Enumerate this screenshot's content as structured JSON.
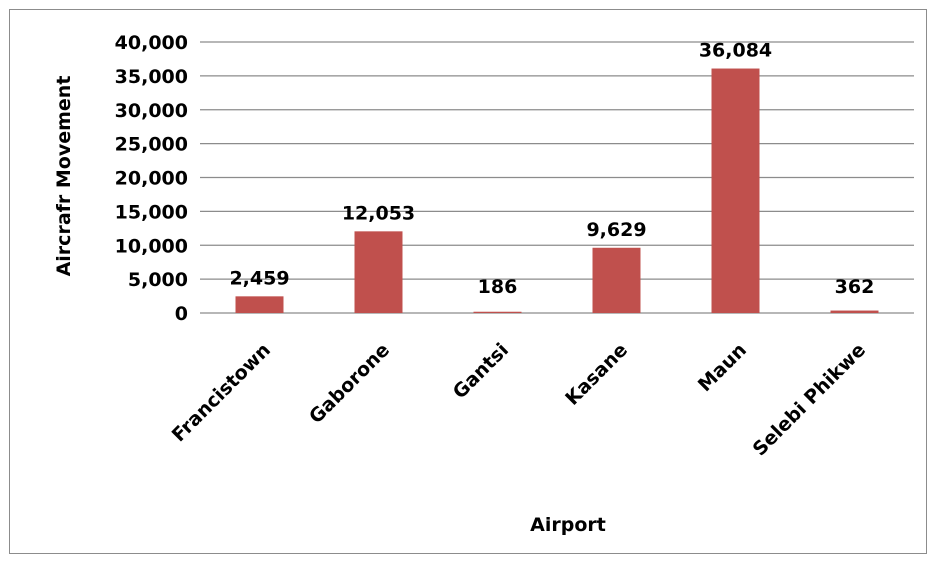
{
  "chart_data": {
    "type": "bar",
    "categories": [
      "Francistown",
      "Gaborone",
      "Gantsi",
      "Kasane",
      "Maun",
      "Selebi Phikwe"
    ],
    "series": [
      {
        "values": [
          2459,
          12053,
          186,
          9629,
          36084,
          362
        ],
        "color": "#c0504d"
      }
    ],
    "data_labels": [
      "2,459",
      "12,053",
      "186",
      "9,629",
      "36,084",
      "362"
    ],
    "xlabel": "Airport",
    "ylabel": "Aircrafr Movement",
    "ylim": [
      0,
      40000
    ],
    "yticks": [
      0,
      5000,
      10000,
      15000,
      20000,
      25000,
      30000,
      35000,
      40000
    ],
    "ytick_labels": [
      "0",
      "5,000",
      "10,000",
      "15,000",
      "20,000",
      "25,000",
      "30,000",
      "35,000",
      "40,000"
    ],
    "grid": true,
    "legend": "none"
  }
}
